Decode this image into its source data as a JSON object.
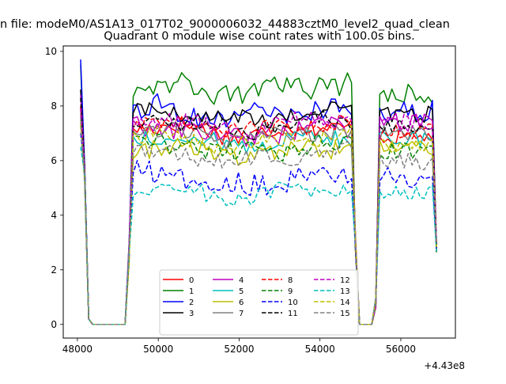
{
  "figure": {
    "suptitle": "n file: modeM0/AS1A13_017T02_9000006032_44883cztM0_level2_quad_clean",
    "offset_label": "+4.43e8"
  },
  "chart_data": {
    "type": "line",
    "title": "Quadrant 0 module wise count rates with 100.0s bins.",
    "xlabel": "",
    "ylabel": "",
    "xlim": [
      47650,
      57350
    ],
    "ylim": [
      -0.5,
      10.2
    ],
    "x_offset": 443000000,
    "x_ticks": [
      48000,
      50000,
      52000,
      54000,
      56000
    ],
    "x_tick_labels": [
      "48000",
      "50000",
      "52000",
      "54000",
      "56000"
    ],
    "y_ticks": [
      0,
      2,
      4,
      6,
      8,
      10
    ],
    "y_tick_labels": [
      "0",
      "2",
      "4",
      "6",
      "8",
      "10"
    ],
    "grid": false,
    "legend": {
      "placement": "lower-center",
      "ncol": 4
    },
    "segments": {
      "seg1": {
        "x_start": 48080,
        "x_end": 49280,
        "step": 100
      },
      "seg2": {
        "x_start": 49380,
        "x_end": 54780,
        "step": 100
      },
      "seg3": {
        "x_start": 54880,
        "x_end": 55380,
        "step": 100
      },
      "seg4": {
        "x_start": 55480,
        "x_end": 56880,
        "step": 100
      }
    },
    "series": [
      {
        "name": "0",
        "color": "#ff0000",
        "dash": "solid",
        "peak": 8.0,
        "mean": 7.3,
        "mean3": 6.9,
        "amp": 0.35,
        "end": 7.5
      },
      {
        "name": "1",
        "color": "#008000",
        "dash": "solid",
        "peak": 9.5,
        "mean": 8.8,
        "mean3": 8.4,
        "amp": 0.4,
        "end": 8.4
      },
      {
        "name": "2",
        "color": "#0000ff",
        "dash": "solid",
        "peak": 9.7,
        "mean": 7.9,
        "mean3": 7.8,
        "amp": 0.45,
        "end": 7.7
      },
      {
        "name": "3",
        "color": "#000000",
        "dash": "solid",
        "peak": 8.6,
        "mean": 7.8,
        "mean3": 7.7,
        "amp": 0.3,
        "end": 7.6
      },
      {
        "name": "4",
        "color": "#bf00bf",
        "dash": "solid",
        "peak": 8.4,
        "mean": 7.2,
        "mean3": 7.4,
        "amp": 0.35,
        "end": 7.4
      },
      {
        "name": "5",
        "color": "#00bfbf",
        "dash": "solid",
        "peak": 7.6,
        "mean": 6.9,
        "mean3": 6.8,
        "amp": 0.3,
        "end": 6.8
      },
      {
        "name": "6",
        "color": "#bfbf00",
        "dash": "solid",
        "peak": 7.4,
        "mean": 6.5,
        "mean3": 6.4,
        "amp": 0.35,
        "end": 6.5
      },
      {
        "name": "7",
        "color": "#808080",
        "dash": "solid",
        "peak": 7.7,
        "mean": 7.1,
        "mean3": 7.0,
        "amp": 0.3,
        "end": 7.0
      },
      {
        "name": "8",
        "color": "#ff0000",
        "dash": "dashed",
        "peak": 7.9,
        "mean": 7.4,
        "mean3": 7.1,
        "amp": 0.3,
        "end": 7.2
      },
      {
        "name": "9",
        "color": "#008000",
        "dash": "dashed",
        "peak": 7.3,
        "mean": 6.6,
        "mean3": 6.4,
        "amp": 0.35,
        "end": 6.4
      },
      {
        "name": "10",
        "color": "#0000ff",
        "dash": "dashed",
        "peak": 7.0,
        "mean": 5.5,
        "mean3": 5.4,
        "amp": 0.45,
        "end": 5.7
      },
      {
        "name": "11",
        "color": "#000000",
        "dash": "dashed",
        "peak": 8.3,
        "mean": 7.5,
        "mean3": 7.3,
        "amp": 0.3,
        "end": 7.2
      },
      {
        "name": "12",
        "color": "#bf00bf",
        "dash": "dashed",
        "peak": 7.9,
        "mean": 7.5,
        "mean3": 7.4,
        "amp": 0.3,
        "end": 7.4
      },
      {
        "name": "13",
        "color": "#00bfbf",
        "dash": "dashed",
        "peak": 6.5,
        "mean": 5.0,
        "mean3": 4.8,
        "amp": 0.3,
        "end": 4.5
      },
      {
        "name": "14",
        "color": "#bfbf00",
        "dash": "dashed",
        "peak": 7.3,
        "mean": 6.9,
        "mean3": 6.6,
        "amp": 0.3,
        "end": 6.7
      },
      {
        "name": "15",
        "color": "#808080",
        "dash": "dashed",
        "peak": 7.5,
        "mean": 6.3,
        "mean3": 6.0,
        "amp": 0.35,
        "end": 6.3
      }
    ]
  }
}
